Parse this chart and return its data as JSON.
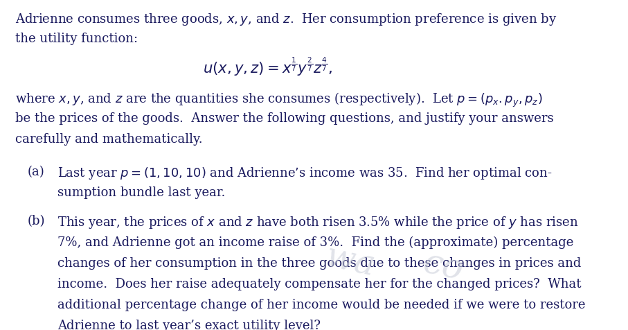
{
  "background_color": "#ffffff",
  "text_color": "#1a1a5e",
  "watermark_color": "#c8ccd8",
  "figsize": [
    9.07,
    4.77
  ],
  "dpi": 100,
  "para1_line1": "Adrienne consumes three goods, $x, y$, and $z$.  Her consumption preference is given by",
  "para1_line2": "the utility function:",
  "equation": "$u(x, y, z) = x^{\\frac{1}{7}}y^{\\frac{2}{7}}z^{\\frac{4}{7}},$",
  "para2_line1": "where $x, y$, and $z$ are the quantities she consumes (respectively).  Let $p = (p_x{.}p_y, p_z)$",
  "para2_line2": "be the prices of the goods.  Answer the following questions, and justify your answers",
  "para2_line3": "carefully and mathematically.",
  "item_a_label": "(a)",
  "item_a_line1": "Last year $p = (1, 10, 10)$ and Adrienne’s income was 35.  Find her optimal con-",
  "item_a_line2": "sumption bundle last year.",
  "item_b_label": "(b)",
  "item_b_line1": "This year, the prices of $x$ and $z$ have both risen 3.5% while the price of $y$ has risen",
  "item_b_line2": "7%, and Adrienne got an income raise of 3%.  Find the (approximate) percentage",
  "item_b_line3": "changes of her consumption in the three goods due to these changes in prices and",
  "item_b_line4": "income.  Does her raise adequately compensate her for the changed prices?  What",
  "item_b_line5": "additional percentage change of her income would be needed if we were to restore",
  "item_b_line6": "Adrienne to last year’s exact utility level?"
}
